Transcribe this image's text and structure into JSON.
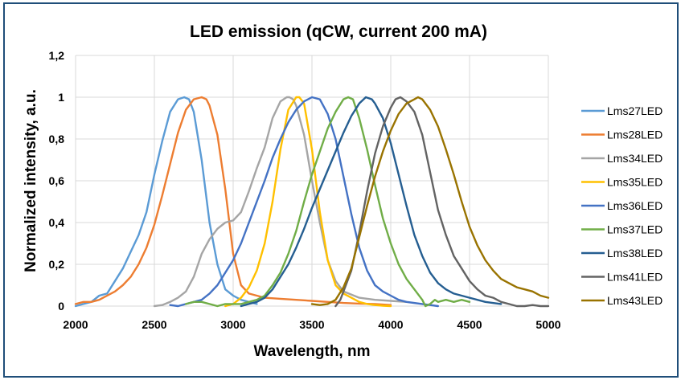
{
  "chart_data": {
    "type": "line",
    "title": "LED emission (qCW, current 200 mA)",
    "xlabel": "Wavelength, nm",
    "ylabel": "Normalized  intensity, a.u.",
    "xlim": [
      2000,
      5000
    ],
    "ylim": [
      0,
      1.2
    ],
    "x_ticks": [
      2000,
      2500,
      3000,
      3500,
      4000,
      4500,
      5000
    ],
    "x_tick_labels": [
      "2000",
      "2500",
      "3000",
      "3500",
      "4000",
      "4500",
      "5000"
    ],
    "y_ticks": [
      0,
      0.2,
      0.4,
      0.6,
      0.8,
      1.0,
      1.2
    ],
    "y_tick_labels": [
      "0",
      "0,2",
      "0,4",
      "0,6",
      "0,8",
      "1",
      "1,2"
    ],
    "grid": true,
    "legend_position": "right",
    "series": [
      {
        "name": "Lms27LED",
        "color": "#5b9bd5",
        "x": [
          2000,
          2050,
          2100,
          2150,
          2200,
          2250,
          2300,
          2350,
          2400,
          2450,
          2500,
          2550,
          2600,
          2650,
          2690,
          2720,
          2750,
          2800,
          2850,
          2900,
          2950,
          3000,
          3050,
          3100,
          3150
        ],
        "y": [
          0,
          0.01,
          0.02,
          0.05,
          0.06,
          0.12,
          0.18,
          0.26,
          0.34,
          0.45,
          0.63,
          0.79,
          0.93,
          0.99,
          1.0,
          0.99,
          0.93,
          0.7,
          0.4,
          0.2,
          0.08,
          0.05,
          0.03,
          0.02,
          0.01
        ]
      },
      {
        "name": "Lms28LED",
        "color": "#ed7d31",
        "x": [
          2000,
          2050,
          2100,
          2150,
          2200,
          2250,
          2300,
          2350,
          2400,
          2450,
          2500,
          2550,
          2600,
          2650,
          2700,
          2750,
          2800,
          2830,
          2850,
          2900,
          2950,
          3000,
          3050,
          3100,
          3200,
          3300,
          3400,
          3500,
          3600,
          3700,
          3800,
          3900,
          4000
        ],
        "y": [
          0.01,
          0.02,
          0.02,
          0.03,
          0.05,
          0.07,
          0.1,
          0.14,
          0.2,
          0.28,
          0.39,
          0.53,
          0.68,
          0.83,
          0.94,
          0.99,
          1.0,
          0.99,
          0.96,
          0.82,
          0.56,
          0.25,
          0.1,
          0.06,
          0.04,
          0.035,
          0.03,
          0.025,
          0.02,
          0.015,
          0.012,
          0.01,
          0.005
        ]
      },
      {
        "name": "Lms34LED",
        "color": "#a5a5a5",
        "x": [
          2500,
          2550,
          2600,
          2650,
          2700,
          2750,
          2800,
          2850,
          2900,
          2950,
          3000,
          3050,
          3100,
          3150,
          3200,
          3250,
          3300,
          3340,
          3357,
          3380,
          3400,
          3450,
          3500,
          3550,
          3600,
          3650,
          3700,
          3800,
          3900,
          4000,
          4100
        ],
        "y": [
          0,
          0.005,
          0.02,
          0.04,
          0.07,
          0.14,
          0.25,
          0.32,
          0.37,
          0.4,
          0.41,
          0.45,
          0.55,
          0.66,
          0.76,
          0.9,
          0.98,
          1.0,
          1.0,
          0.99,
          0.96,
          0.82,
          0.6,
          0.4,
          0.22,
          0.12,
          0.07,
          0.04,
          0.03,
          0.025,
          0.02
        ]
      },
      {
        "name": "Lms35LED",
        "color": "#ffc000",
        "x": [
          2950,
          3000,
          3050,
          3100,
          3150,
          3200,
          3250,
          3300,
          3350,
          3400,
          3420,
          3450,
          3500,
          3550,
          3600,
          3650,
          3700,
          3750,
          3800,
          3850,
          3900,
          3950,
          4000
        ],
        "y": [
          0,
          0.01,
          0.04,
          0.09,
          0.17,
          0.3,
          0.5,
          0.75,
          0.94,
          1.0,
          1.0,
          0.97,
          0.75,
          0.45,
          0.22,
          0.1,
          0.06,
          0.04,
          0.02,
          0.01,
          0.005,
          0.002,
          0
        ]
      },
      {
        "name": "Lms36LED",
        "color": "#4472c4",
        "x": [
          2600,
          2650,
          2700,
          2750,
          2800,
          2850,
          2900,
          2950,
          3000,
          3050,
          3100,
          3150,
          3200,
          3250,
          3300,
          3350,
          3400,
          3450,
          3500,
          3550,
          3600,
          3650,
          3700,
          3750,
          3800,
          3850,
          3900,
          3950,
          4000,
          4050,
          4100,
          4200,
          4300
        ],
        "y": [
          0.005,
          0.0,
          0.01,
          0.02,
          0.03,
          0.06,
          0.1,
          0.16,
          0.22,
          0.3,
          0.4,
          0.5,
          0.6,
          0.71,
          0.8,
          0.88,
          0.94,
          0.98,
          1.0,
          0.99,
          0.92,
          0.8,
          0.62,
          0.44,
          0.28,
          0.17,
          0.1,
          0.07,
          0.05,
          0.03,
          0.02,
          0.01,
          0.0
        ]
      },
      {
        "name": "Lms37LED",
        "color": "#70ad47",
        "x": [
          2700,
          2750,
          2800,
          2850,
          2900,
          2950,
          3000,
          3050,
          3100,
          3150,
          3200,
          3250,
          3300,
          3350,
          3400,
          3450,
          3500,
          3550,
          3600,
          3650,
          3700,
          3730,
          3760,
          3800,
          3850,
          3900,
          3950,
          4000,
          4050,
          4100,
          4150,
          4200,
          4220,
          4250,
          4280,
          4300,
          4350,
          4400,
          4450,
          4500
        ],
        "y": [
          0.01,
          0.02,
          0.02,
          0.01,
          0.0,
          0.01,
          0.01,
          0.01,
          0.02,
          0.03,
          0.05,
          0.1,
          0.16,
          0.25,
          0.36,
          0.5,
          0.63,
          0.74,
          0.85,
          0.93,
          0.99,
          1.0,
          0.99,
          0.9,
          0.75,
          0.58,
          0.42,
          0.3,
          0.2,
          0.13,
          0.08,
          0.03,
          0.0,
          0.01,
          0.03,
          0.02,
          0.03,
          0.02,
          0.03,
          0.02
        ]
      },
      {
        "name": "Lms38LED",
        "color": "#255e91",
        "x": [
          3050,
          3100,
          3150,
          3200,
          3250,
          3300,
          3350,
          3400,
          3450,
          3500,
          3550,
          3600,
          3650,
          3700,
          3750,
          3800,
          3842,
          3880,
          3900,
          3950,
          4000,
          4050,
          4100,
          4150,
          4200,
          4250,
          4300,
          4350,
          4400,
          4500,
          4600,
          4700
        ],
        "y": [
          0.0,
          0.01,
          0.02,
          0.04,
          0.08,
          0.14,
          0.2,
          0.28,
          0.37,
          0.47,
          0.56,
          0.65,
          0.74,
          0.83,
          0.91,
          0.97,
          1.0,
          0.99,
          0.97,
          0.9,
          0.78,
          0.63,
          0.48,
          0.34,
          0.24,
          0.16,
          0.11,
          0.08,
          0.06,
          0.04,
          0.02,
          0.01
        ]
      },
      {
        "name": "Lms41LED",
        "color": "#636363",
        "x": [
          3650,
          3680,
          3700,
          3750,
          3800,
          3850,
          3900,
          3950,
          4000,
          4030,
          4061,
          4100,
          4150,
          4200,
          4250,
          4300,
          4350,
          4400,
          4450,
          4500,
          4550,
          4600,
          4650,
          4700,
          4750,
          4800,
          4850,
          4900,
          4950,
          5000
        ],
        "y": [
          0.0,
          0.03,
          0.07,
          0.17,
          0.35,
          0.55,
          0.73,
          0.86,
          0.95,
          0.99,
          1.0,
          0.98,
          0.93,
          0.82,
          0.64,
          0.46,
          0.34,
          0.24,
          0.18,
          0.12,
          0.08,
          0.05,
          0.04,
          0.02,
          0.01,
          0.0,
          0.0,
          0.005,
          0.0,
          0.0
        ]
      },
      {
        "name": "Lms43LED",
        "color": "#997300",
        "x": [
          3500,
          3550,
          3600,
          3650,
          3700,
          3750,
          3800,
          3850,
          3900,
          3950,
          4000,
          4050,
          4100,
          4150,
          4173,
          4200,
          4250,
          4300,
          4350,
          4400,
          4450,
          4500,
          4550,
          4600,
          4650,
          4700,
          4750,
          4800,
          4850,
          4900,
          4950,
          5000
        ],
        "y": [
          0.01,
          0.005,
          0.01,
          0.03,
          0.09,
          0.18,
          0.33,
          0.48,
          0.62,
          0.74,
          0.84,
          0.92,
          0.97,
          0.99,
          1.0,
          0.99,
          0.94,
          0.86,
          0.75,
          0.63,
          0.5,
          0.38,
          0.29,
          0.22,
          0.17,
          0.13,
          0.11,
          0.09,
          0.08,
          0.07,
          0.05,
          0.04
        ]
      }
    ]
  }
}
